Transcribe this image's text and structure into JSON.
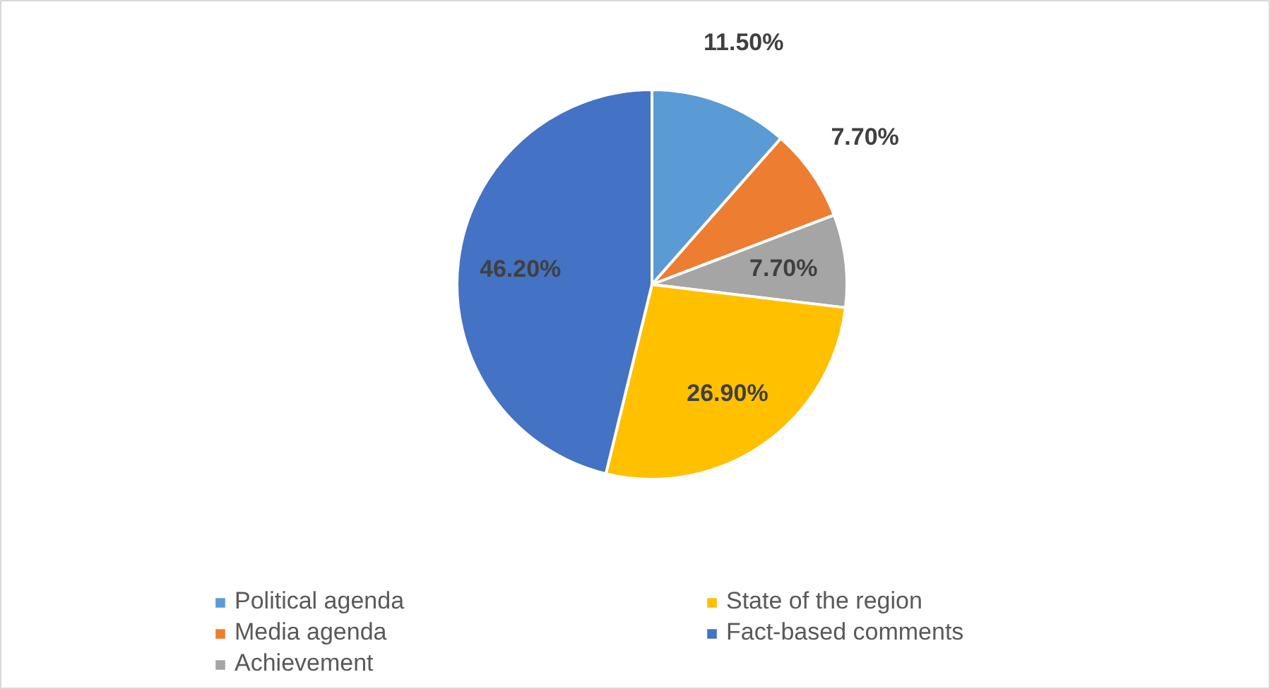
{
  "chart_data": {
    "type": "pie",
    "categories": [
      "Political agenda",
      "Media agenda",
      "Achievement",
      "State of the region",
      "Fact-based comments"
    ],
    "values": [
      11.5,
      7.7,
      7.7,
      26.9,
      46.2
    ],
    "value_labels": [
      "11.50%",
      "7.70%",
      "7.70%",
      "26.90%",
      "46.20%"
    ],
    "colors": [
      "#5b9bd5",
      "#ed7d31",
      "#a5a5a5",
      "#ffc000",
      "#4472c4"
    ],
    "legend": "bottom"
  }
}
